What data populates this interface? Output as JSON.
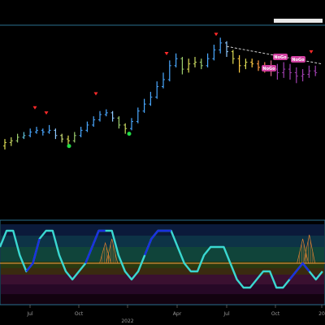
{
  "colors": {
    "background": "#000000",
    "panel_border": "#2a6f8f",
    "signal_down": "#ff2a2a",
    "signal_up": "#22dd44",
    "oscillator_fast": "#3ad7d0",
    "oscillator_slow": "#1a2fe0",
    "zero_line": "#d08a3a",
    "dashed_trend": "#cfcfcf",
    "nogo_badge": "#d040a0"
  },
  "chart_data": [
    {
      "type": "candlestick",
      "title": "",
      "xlabel": "",
      "ylabel": "",
      "x_tick_labels": [
        "Jul",
        "Oct",
        "2022",
        "Apr",
        "Jul",
        "Oct",
        "20"
      ],
      "y_range": [
        0,
        100
      ],
      "grid": false,
      "bars": [
        {
          "x": 0,
          "open": 38,
          "close": 40,
          "high": 42,
          "low": 36,
          "color": "#dddd55"
        },
        {
          "x": 2,
          "open": 40,
          "close": 41,
          "high": 43,
          "low": 38,
          "color": "#c8d860"
        },
        {
          "x": 4,
          "open": 41,
          "close": 43,
          "high": 45,
          "low": 40,
          "color": "#9ed070"
        },
        {
          "x": 6,
          "open": 43,
          "close": 44,
          "high": 46,
          "low": 42,
          "color": "#5fbfd8"
        },
        {
          "x": 8,
          "open": 44,
          "close": 46,
          "high": 48,
          "low": 43,
          "color": "#4aa8ff"
        },
        {
          "x": 10,
          "open": 46,
          "close": 47,
          "high": 49,
          "low": 45,
          "color": "#4aa8ff"
        },
        {
          "x": 12,
          "open": 47,
          "close": 46,
          "high": 48,
          "low": 44,
          "color": "#4aa8ff"
        },
        {
          "x": 14,
          "open": 46,
          "close": 47,
          "high": 50,
          "low": 45,
          "color": "#4aa8ff"
        },
        {
          "x": 16,
          "open": 47,
          "close": 44,
          "high": 48,
          "low": 42,
          "color": "#8ec8ff"
        },
        {
          "x": 18,
          "open": 44,
          "close": 42,
          "high": 45,
          "low": 40,
          "color": "#cfe27a"
        },
        {
          "x": 20,
          "open": 42,
          "close": 41,
          "high": 44,
          "low": 38,
          "color": "#dddd55"
        },
        {
          "x": 22,
          "open": 41,
          "close": 44,
          "high": 46,
          "low": 40,
          "color": "#9ed070"
        },
        {
          "x": 24,
          "open": 44,
          "close": 47,
          "high": 49,
          "low": 43,
          "color": "#4aa8ff"
        },
        {
          "x": 26,
          "open": 47,
          "close": 50,
          "high": 52,
          "low": 46,
          "color": "#4aa8ff"
        },
        {
          "x": 28,
          "open": 50,
          "close": 53,
          "high": 55,
          "low": 49,
          "color": "#4aa8ff"
        },
        {
          "x": 30,
          "open": 53,
          "close": 56,
          "high": 58,
          "low": 52,
          "color": "#4aa8ff"
        },
        {
          "x": 32,
          "open": 56,
          "close": 57,
          "high": 59,
          "low": 55,
          "color": "#4aa8ff"
        },
        {
          "x": 34,
          "open": 57,
          "close": 54,
          "high": 58,
          "low": 52,
          "color": "#8ec8ff"
        },
        {
          "x": 36,
          "open": 54,
          "close": 50,
          "high": 55,
          "low": 48,
          "color": "#9ed070"
        },
        {
          "x": 38,
          "open": 50,
          "close": 48,
          "high": 51,
          "low": 45,
          "color": "#c8d860"
        },
        {
          "x": 40,
          "open": 48,
          "close": 52,
          "high": 54,
          "low": 47,
          "color": "#4aa8ff"
        },
        {
          "x": 42,
          "open": 52,
          "close": 58,
          "high": 60,
          "low": 51,
          "color": "#4aa8ff"
        },
        {
          "x": 44,
          "open": 58,
          "close": 62,
          "high": 65,
          "low": 57,
          "color": "#4aa8ff"
        },
        {
          "x": 46,
          "open": 62,
          "close": 66,
          "high": 69,
          "low": 61,
          "color": "#4aa8ff"
        },
        {
          "x": 48,
          "open": 66,
          "close": 72,
          "high": 75,
          "low": 65,
          "color": "#4aa8ff"
        },
        {
          "x": 50,
          "open": 72,
          "close": 76,
          "high": 80,
          "low": 71,
          "color": "#4aa8ff"
        },
        {
          "x": 52,
          "open": 76,
          "close": 84,
          "high": 87,
          "low": 75,
          "color": "#4aa8ff"
        },
        {
          "x": 54,
          "open": 84,
          "close": 88,
          "high": 91,
          "low": 83,
          "color": "#4aa8ff"
        },
        {
          "x": 56,
          "open": 88,
          "close": 82,
          "high": 89,
          "low": 79,
          "color": "#9ed070"
        },
        {
          "x": 58,
          "open": 82,
          "close": 85,
          "high": 88,
          "low": 80,
          "color": "#dddd55"
        },
        {
          "x": 60,
          "open": 85,
          "close": 86,
          "high": 89,
          "low": 83,
          "color": "#c8d860"
        },
        {
          "x": 62,
          "open": 86,
          "close": 84,
          "high": 88,
          "low": 82,
          "color": "#9ed070"
        },
        {
          "x": 64,
          "open": 84,
          "close": 88,
          "high": 91,
          "low": 83,
          "color": "#4aa8ff"
        },
        {
          "x": 66,
          "open": 88,
          "close": 93,
          "high": 96,
          "low": 87,
          "color": "#4aa8ff"
        },
        {
          "x": 68,
          "open": 93,
          "close": 97,
          "high": 100,
          "low": 91,
          "color": "#4aa8ff"
        },
        {
          "x": 70,
          "open": 97,
          "close": 92,
          "high": 98,
          "low": 89,
          "color": "#8ec8ff"
        },
        {
          "x": 72,
          "open": 92,
          "close": 88,
          "high": 93,
          "low": 85,
          "color": "#dddd55"
        },
        {
          "x": 74,
          "open": 88,
          "close": 84,
          "high": 90,
          "low": 80,
          "color": "#ffcc44"
        },
        {
          "x": 76,
          "open": 84,
          "close": 86,
          "high": 88,
          "low": 82,
          "color": "#dddd55"
        },
        {
          "x": 78,
          "open": 86,
          "close": 85,
          "high": 88,
          "low": 83,
          "color": "#ffcc44"
        },
        {
          "x": 80,
          "open": 85,
          "close": 83,
          "high": 87,
          "low": 81,
          "color": "#ff9a44"
        },
        {
          "x": 82,
          "open": 83,
          "close": 84,
          "high": 86,
          "low": 80,
          "color": "#ff8a55"
        },
        {
          "x": 84,
          "open": 84,
          "close": 82,
          "high": 87,
          "low": 78,
          "color": "#d86a8a"
        },
        {
          "x": 86,
          "open": 82,
          "close": 80,
          "high": 85,
          "low": 76,
          "color": "#a040b0"
        },
        {
          "x": 88,
          "open": 80,
          "close": 82,
          "high": 86,
          "low": 77,
          "color": "#a040b0"
        },
        {
          "x": 90,
          "open": 82,
          "close": 80,
          "high": 85,
          "low": 76,
          "color": "#a040b0"
        },
        {
          "x": 92,
          "open": 80,
          "close": 78,
          "high": 83,
          "low": 74,
          "color": "#a040b0"
        },
        {
          "x": 94,
          "open": 78,
          "close": 79,
          "high": 82,
          "low": 75,
          "color": "#a040b0"
        },
        {
          "x": 96,
          "open": 79,
          "close": 81,
          "high": 84,
          "low": 77,
          "color": "#a040b0"
        },
        {
          "x": 98,
          "open": 81,
          "close": 80,
          "high": 84,
          "low": 78,
          "color": "#a040b0"
        }
      ],
      "down_markers": [
        {
          "x": 17,
          "y": 58
        },
        {
          "x": 23,
          "y": 55
        },
        {
          "x": 45,
          "y": 66
        },
        {
          "x": 79,
          "y": 89
        },
        {
          "x": 101,
          "y": 100
        },
        {
          "x": 152,
          "y": 90
        }
      ],
      "up_markers": [
        {
          "x": 34,
          "y": 38
        },
        {
          "x": 63,
          "y": 45
        }
      ],
      "nogo_badges": [
        {
          "x": 84,
          "y": 91,
          "label": "NoGo"
        },
        {
          "x": 88,
          "y": 88,
          "label": "NoGo"
        },
        {
          "x": 83,
          "y": 80,
          "label": "NoGo"
        }
      ],
      "trend_line": {
        "start": [
          70,
          95
        ],
        "end": [
          100,
          85
        ]
      }
    },
    {
      "type": "line",
      "title": "",
      "xlabel": "",
      "ylabel": "",
      "y_range": [
        -5,
        5
      ],
      "zero_line": 0,
      "series": [
        {
          "color": "#3ad7d0",
          "values": [
            2,
            4,
            4,
            1,
            -1,
            0,
            3,
            4,
            4,
            1,
            -1,
            -2,
            -1,
            0,
            2,
            4,
            4,
            4,
            1,
            -1,
            -2,
            -1,
            1,
            3,
            4,
            4,
            4,
            2,
            0,
            -1,
            -1,
            1,
            2,
            2,
            2,
            0,
            -2,
            -3,
            -3,
            -2,
            -1,
            -1,
            -3,
            -3,
            -2,
            -1,
            0,
            -1,
            -2,
            -1
          ]
        }
      ],
      "histogram": [
        0,
        0,
        0,
        0,
        0,
        0,
        0,
        0,
        0,
        0,
        0,
        0,
        0,
        0,
        0,
        0,
        2.5,
        3,
        0,
        0,
        0,
        0,
        0,
        0,
        0,
        0,
        0,
        0,
        0,
        0,
        0,
        0,
        0,
        0,
        0,
        0,
        0,
        0,
        0,
        0,
        0,
        0,
        0,
        0,
        0,
        0,
        3,
        3.5,
        0,
        0
      ]
    }
  ]
}
